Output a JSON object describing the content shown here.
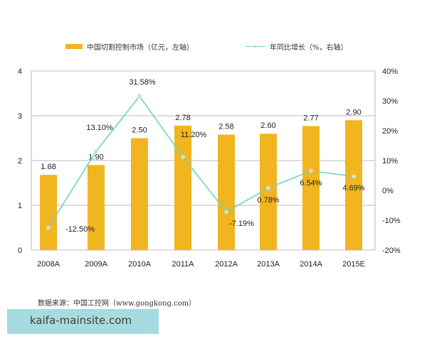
{
  "legend": {
    "bar_label": "中国切割控制市场（亿元，左轴）",
    "line_label": "年同比增长（%，右轴）"
  },
  "source": "数据来源：中国工控网（www.gongkong.com）",
  "watermark": "kaifa-mainsite.com",
  "colors": {
    "bar": "#f1b51f",
    "line": "#6dd4c4",
    "marker": "#c7e6cf",
    "grid": "#bdbdbd"
  },
  "chart_data": {
    "type": "bar+line",
    "categories": [
      "2008A",
      "2009A",
      "2010A",
      "2011A",
      "2012A",
      "2013A",
      "2014A",
      "2015E"
    ],
    "series": [
      {
        "name": "中国切割控制市场（亿元，左轴）",
        "type": "bar",
        "axis": "left",
        "values": [
          1.68,
          1.9,
          2.5,
          2.78,
          2.58,
          2.6,
          2.77,
          2.9
        ],
        "labels": [
          "1.68",
          "1.90",
          "2.50",
          "2.78",
          "2.58",
          "2.60",
          "2.77",
          "2.90"
        ]
      },
      {
        "name": "年同比增长（%，右轴）",
        "type": "line",
        "axis": "right",
        "values": [
          -12.5,
          13.1,
          31.58,
          11.2,
          -7.19,
          0.78,
          6.54,
          4.69
        ],
        "labels": [
          "-12.50%",
          "13.10%",
          "31.58%",
          "11.20%",
          "-7.19%",
          "0.78%",
          "6.54%",
          "4.69%"
        ]
      }
    ],
    "left_axis": {
      "ylim": [
        0,
        4
      ],
      "ticks": [
        "0",
        "1",
        "2",
        "3",
        "4"
      ]
    },
    "right_axis": {
      "ylim": [
        -20,
        40
      ],
      "ticks": [
        "-20%",
        "-10%",
        "0%",
        "10%",
        "20%",
        "30%",
        "40%"
      ]
    },
    "grid": true,
    "legend_position": "top",
    "title": "",
    "xlabel": "",
    "ylabel": ""
  }
}
